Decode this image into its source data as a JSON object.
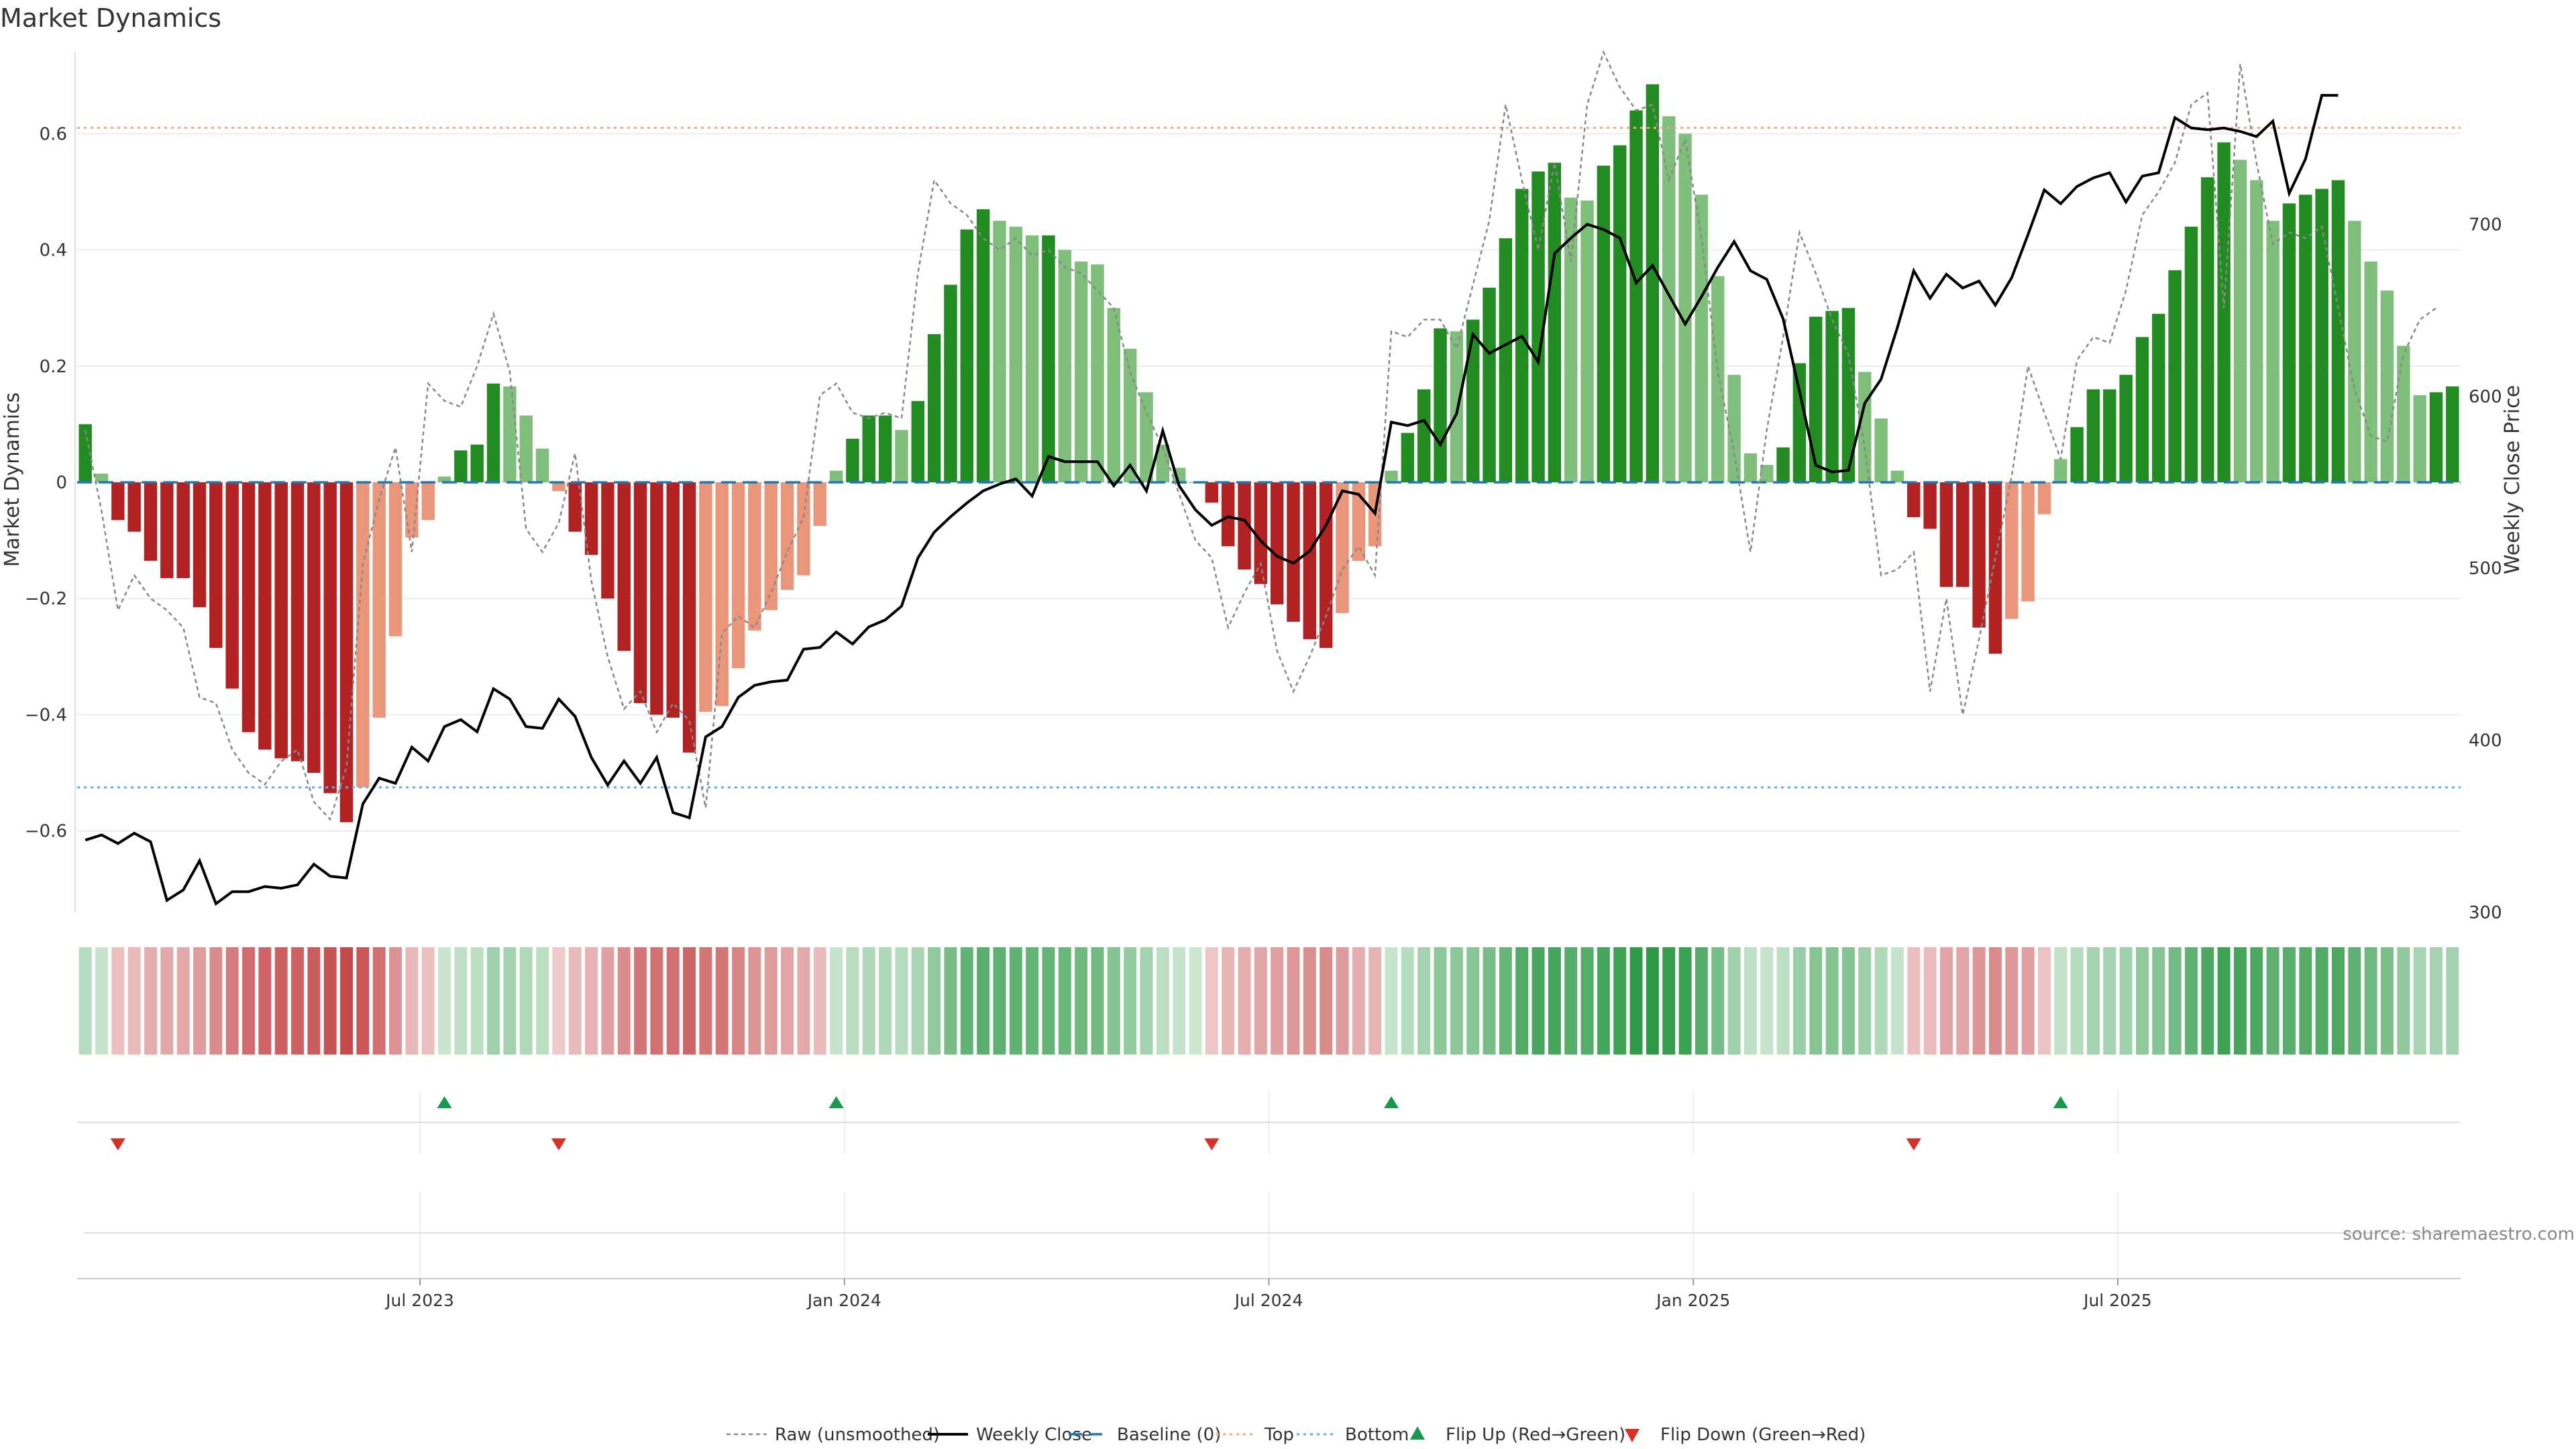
{
  "chart_data": {
    "type": "bar",
    "title": "Market Dynamics",
    "ylabel": "Market Dynamics",
    "y2label": "Weekly Close Price",
    "ylim": [
      -0.74,
      0.74
    ],
    "y2lim": [
      300,
      800
    ],
    "y_ticks": [
      -0.6,
      -0.4,
      -0.2,
      0,
      0.2,
      0.4,
      0.6
    ],
    "y_tick_labels": [
      "−0.6",
      "−0.4",
      "−0.2",
      "0",
      "0.2",
      "0.4",
      "0.6"
    ],
    "y2_ticks": [
      300,
      400,
      500,
      600,
      700
    ],
    "x_tick_labels": [
      "Jul 2023",
      "Jan 2024",
      "Jul 2024",
      "Jan 2025",
      "Jul 2025"
    ],
    "x_tick_positions": [
      21,
      47,
      73,
      99,
      125
    ],
    "top_level": 0.61,
    "bottom_level": -0.525,
    "grid": true,
    "legend_position": "bottom-center",
    "source": "source: sharemaestro.com",
    "colors": {
      "strong_green": "#228b22",
      "weak_green": "#7fbf7b",
      "strong_red": "#b22222",
      "weak_red": "#e9967a",
      "close": "#000000",
      "raw": "#888888",
      "baseline": "#1f77b4",
      "top": "#f4a582",
      "bottom": "#56b4e9",
      "flip_up": "#1a9850",
      "flip_down": "#d73027"
    },
    "legend": [
      {
        "label": "Raw (unsmoothed)",
        "style": "raw"
      },
      {
        "label": "Weekly Close",
        "style": "close"
      },
      {
        "label": "Baseline (0)",
        "style": "baseline"
      },
      {
        "label": "Top",
        "style": "top"
      },
      {
        "label": "Bottom",
        "style": "bottom"
      },
      {
        "label": "Flip Up (Red→Green)",
        "style": "flip_up"
      },
      {
        "label": "Flip Down (Green→Red)",
        "style": "flip_down"
      }
    ],
    "series": [
      {
        "name": "Market Dynamics",
        "values": [
          0.1,
          0.015,
          -0.065,
          -0.085,
          -0.135,
          -0.165,
          -0.165,
          -0.215,
          -0.285,
          -0.355,
          -0.43,
          -0.46,
          -0.475,
          -0.48,
          -0.5,
          -0.535,
          -0.585,
          -0.525,
          -0.405,
          -0.265,
          -0.095,
          -0.065,
          0.01,
          0.055,
          0.065,
          0.17,
          0.165,
          0.115,
          0.058,
          -0.015,
          -0.085,
          -0.125,
          -0.2,
          -0.29,
          -0.38,
          -0.4,
          -0.405,
          -0.465,
          -0.395,
          -0.385,
          -0.32,
          -0.255,
          -0.22,
          -0.185,
          -0.16,
          -0.075,
          0.02,
          0.075,
          0.115,
          0.115,
          0.09,
          0.14,
          0.255,
          0.34,
          0.435,
          0.47,
          0.45,
          0.44,
          0.425,
          0.425,
          0.4,
          0.38,
          0.375,
          0.3,
          0.23,
          0.155,
          0.065,
          0.025,
          0.0,
          -0.035,
          -0.11,
          -0.15,
          -0.175,
          -0.21,
          -0.24,
          -0.27,
          -0.285,
          -0.225,
          -0.135,
          -0.11,
          0.02,
          0.085,
          0.16,
          0.265,
          0.26,
          0.28,
          0.335,
          0.42,
          0.505,
          0.535,
          0.55,
          0.49,
          0.485,
          0.545,
          0.58,
          0.64,
          0.685,
          0.63,
          0.6,
          0.495,
          0.355,
          0.185,
          0.05,
          0.03,
          0.06,
          0.205,
          0.285,
          0.295,
          0.3,
          0.19,
          0.11,
          0.02,
          -0.06,
          -0.08,
          -0.18,
          -0.18,
          -0.25,
          -0.295,
          -0.235,
          -0.205,
          -0.055,
          0.04,
          0.095,
          0.16,
          0.16,
          0.185,
          0.25,
          0.29,
          0.365,
          0.44,
          0.525,
          0.585,
          0.555,
          0.52,
          0.45,
          0.48,
          0.495,
          0.505,
          0.52,
          0.45,
          0.38,
          0.33,
          0.235,
          0.15,
          0.155,
          0.165
        ]
      },
      {
        "name": "Raw (unsmoothed)",
        "values": [
          0.09,
          -0.05,
          -0.22,
          -0.16,
          -0.2,
          -0.22,
          -0.25,
          -0.37,
          -0.38,
          -0.46,
          -0.5,
          -0.52,
          -0.48,
          -0.46,
          -0.55,
          -0.58,
          -0.49,
          -0.14,
          -0.03,
          0.06,
          -0.12,
          0.17,
          0.14,
          0.13,
          0.2,
          0.29,
          0.19,
          -0.08,
          -0.12,
          -0.07,
          0.05,
          -0.17,
          -0.3,
          -0.39,
          -0.36,
          -0.43,
          -0.38,
          -0.41,
          -0.56,
          -0.26,
          -0.23,
          -0.25,
          -0.19,
          -0.12,
          -0.06,
          0.15,
          0.17,
          0.12,
          0.11,
          0.12,
          0.11,
          0.36,
          0.52,
          0.48,
          0.46,
          0.42,
          0.4,
          0.42,
          0.39,
          0.4,
          0.37,
          0.36,
          0.33,
          0.3,
          0.19,
          0.12,
          0.06,
          -0.02,
          -0.1,
          -0.13,
          -0.25,
          -0.19,
          -0.14,
          -0.29,
          -0.36,
          -0.3,
          -0.23,
          -0.15,
          -0.11,
          -0.16,
          0.26,
          0.25,
          0.28,
          0.28,
          0.23,
          0.34,
          0.45,
          0.65,
          0.52,
          0.4,
          0.55,
          0.38,
          0.65,
          0.74,
          0.68,
          0.64,
          0.65,
          0.52,
          0.59,
          0.42,
          0.19,
          0.05,
          -0.12,
          0.09,
          0.25,
          0.43,
          0.36,
          0.28,
          0.22,
          0.06,
          -0.16,
          -0.15,
          -0.12,
          -0.36,
          -0.2,
          -0.4,
          -0.27,
          -0.13,
          0.01,
          0.2,
          0.12,
          0.04,
          0.21,
          0.25,
          0.24,
          0.33,
          0.46,
          0.5,
          0.55,
          0.65,
          0.67,
          0.3,
          0.72,
          0.55,
          0.41,
          0.43,
          0.42,
          0.44,
          0.3,
          0.16,
          0.08,
          0.07,
          0.22,
          0.28,
          0.3
        ]
      },
      {
        "name": "Weekly Close",
        "values": [
          342,
          345,
          340,
          346,
          341,
          307,
          313,
          330,
          305,
          312,
          312,
          315,
          314,
          316,
          328,
          321,
          320,
          363,
          378,
          375,
          396,
          388,
          408,
          412,
          405,
          430,
          424,
          408,
          407,
          424,
          414,
          390,
          374,
          388,
          375,
          390,
          358,
          355,
          402,
          408,
          425,
          432,
          434,
          435,
          453,
          454,
          463,
          456,
          466,
          470,
          478,
          506,
          521,
          530,
          538,
          545,
          549,
          552,
          542,
          565,
          562,
          562,
          562,
          548,
          560,
          545,
          580,
          548,
          534,
          525,
          530,
          528,
          516,
          507,
          503,
          510,
          525,
          545,
          543,
          532,
          585,
          583,
          586,
          572,
          590,
          636,
          625,
          630,
          635,
          620,
          683,
          692,
          700,
          697,
          692,
          666,
          676,
          659,
          642,
          658,
          675,
          690,
          673,
          668,
          645,
          603,
          560,
          556,
          557,
          596,
          610,
          640,
          673,
          657,
          671,
          663,
          667,
          653,
          669,
          694,
          720,
          712,
          722,
          727,
          730,
          713,
          728,
          730,
          762,
          756,
          755,
          756,
          754,
          751,
          760,
          718,
          738,
          775,
          775
        ]
      }
    ]
  }
}
